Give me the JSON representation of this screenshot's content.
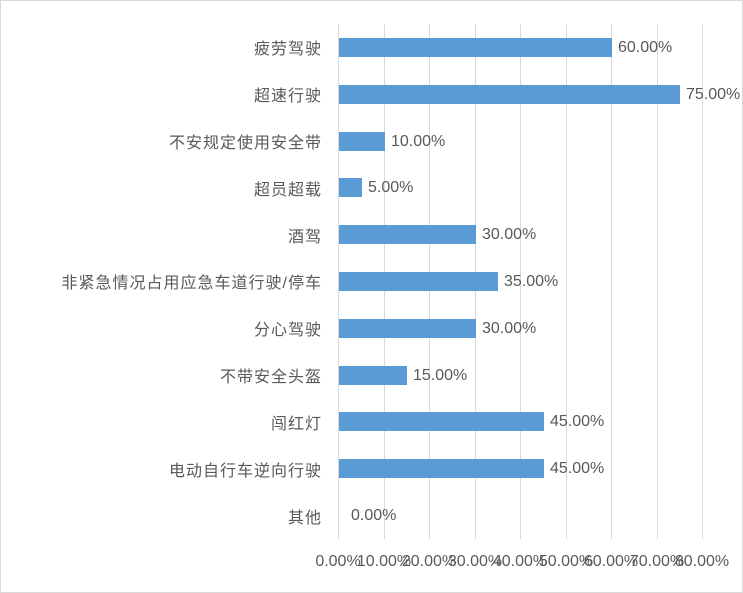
{
  "chart_data": {
    "type": "bar",
    "orientation": "horizontal",
    "title": "",
    "xlabel": "",
    "ylabel": "",
    "legend": "none",
    "grid": true,
    "xlim": [
      0,
      80
    ],
    "categories": [
      "疲劳驾驶",
      "超速行驶",
      "不安规定使用安全带",
      "超员超载",
      "酒驾",
      "非紧急情况占用应急车道行驶/停车",
      "分心驾驶",
      "不带安全头盔",
      "闯红灯",
      "电动自行车逆向行驶",
      "其他"
    ],
    "values": [
      60,
      75,
      10,
      5,
      30,
      35,
      30,
      15,
      45,
      45,
      0
    ],
    "data_labels": [
      "60.00%",
      "75.00%",
      "10.00%",
      "5.00%",
      "30.00%",
      "35.00%",
      "30.00%",
      "15.00%",
      "45.00%",
      "45.00%",
      "0.00%"
    ],
    "x_ticks": [
      "0.00%",
      "10.00%",
      "20.00%",
      "30.00%",
      "40.00%",
      "50.00%",
      "60.00%",
      "70.00%",
      "80.00%"
    ],
    "colors": {
      "bar": "#5B9BD5",
      "grid": "#D9D9D9",
      "axis": "#D9D9D9",
      "text": "#595959",
      "chart_border": "#D9D9D9",
      "background": "#FFFFFF"
    }
  }
}
